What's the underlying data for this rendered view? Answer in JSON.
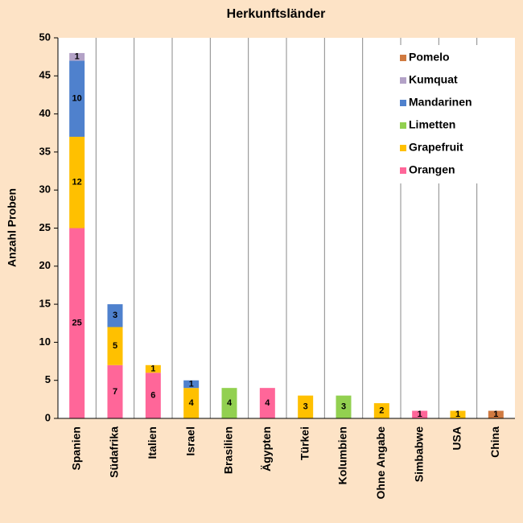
{
  "chart_data": {
    "type": "stacked_bar",
    "title": "Herkunftsländer",
    "y_label": "Anzahl Proben",
    "categories": [
      "Spanien",
      "Südafrika",
      "Italien",
      "Israel",
      "Brasilien",
      "Ägypten",
      "Türkei",
      "Kolumbien",
      "Ohne Angabe",
      "Simbabwe",
      "USA",
      "China"
    ],
    "series": [
      {
        "name": "Orangen",
        "color": "#ff6699",
        "values": [
          25,
          7,
          6,
          0,
          0,
          4,
          0,
          0,
          0,
          1,
          0,
          0
        ]
      },
      {
        "name": "Grapefruit",
        "color": "#ffc000",
        "values": [
          12,
          5,
          1,
          4,
          0,
          0,
          3,
          0,
          2,
          0,
          1,
          0
        ]
      },
      {
        "name": "Limetten",
        "color": "#92d050",
        "values": [
          0,
          0,
          0,
          0,
          4,
          0,
          0,
          3,
          0,
          0,
          0,
          0
        ]
      },
      {
        "name": "Mandarinen",
        "color": "#4f81cd",
        "values": [
          10,
          3,
          0,
          1,
          0,
          0,
          0,
          0,
          0,
          0,
          0,
          0
        ]
      },
      {
        "name": "Kumquat",
        "color": "#b3a2c7",
        "values": [
          1,
          0,
          0,
          0,
          0,
          0,
          0,
          0,
          0,
          0,
          0,
          0
        ]
      },
      {
        "name": "Pomelo",
        "color": "#d07a40",
        "values": [
          0,
          0,
          0,
          0,
          0,
          0,
          0,
          0,
          0,
          0,
          0,
          1
        ]
      }
    ],
    "ylim": [
      0,
      50
    ],
    "yticks": [
      0,
      5,
      10,
      15,
      20,
      25,
      30,
      35,
      40,
      45,
      50
    ],
    "legend": "upper right"
  }
}
